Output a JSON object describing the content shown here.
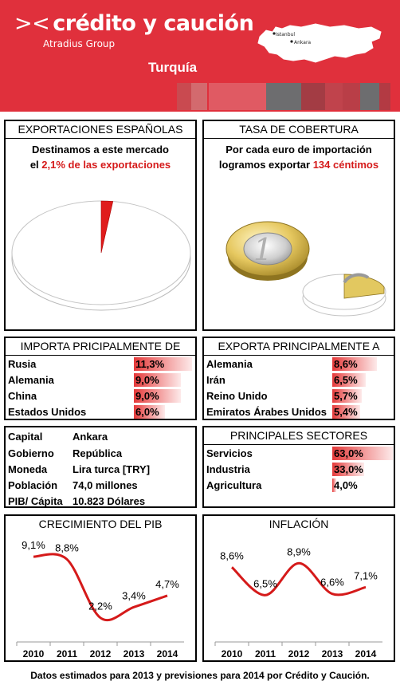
{
  "header": {
    "brand": "crédito y caución",
    "group": "Atradius Group",
    "country": "Turquía",
    "map_labels": [
      "Istanbul",
      "Ankara"
    ],
    "colors": {
      "brand_red": "#e0303c",
      "accent_red": "#d51a1a"
    }
  },
  "exportaciones": {
    "title": "EXPORTACIONES ESPAÑOLAS",
    "line1": "Destinamos a este mercado",
    "line2_prefix": "el ",
    "line2_value": "2,1% de las exportaciones",
    "share_percent": 2.1
  },
  "cobertura": {
    "title": "TASA DE COBERTURA",
    "line1": "Por cada euro de importación",
    "line2_prefix": "logramos exportar ",
    "line2_value": "134 céntimos",
    "coverage_cents": 134
  },
  "importa": {
    "title": "IMPORTA PRICIPALMENTE DE",
    "rows": [
      {
        "label": "Rusia",
        "value": "11,3%",
        "pct": 11.3
      },
      {
        "label": "Alemania",
        "value": "9,0%",
        "pct": 9.0
      },
      {
        "label": "China",
        "value": "9,0%",
        "pct": 9.0
      },
      {
        "label": "Estados Unidos",
        "value": "6,0%",
        "pct": 6.0
      }
    ]
  },
  "exporta": {
    "title": "EXPORTA PRINCIPALMENTE A",
    "rows": [
      {
        "label": "Alemania",
        "value": "8,6%",
        "pct": 8.6
      },
      {
        "label": "Irán",
        "value": "6,5%",
        "pct": 6.5
      },
      {
        "label": "Reino Unido",
        "value": "5,7%",
        "pct": 5.7
      },
      {
        "label": "Emiratos Árabes Unidos",
        "value": "5,4%",
        "pct": 5.4
      }
    ]
  },
  "datos": {
    "rows": [
      {
        "label": "Capital",
        "value": "Ankara"
      },
      {
        "label": "Gobierno",
        "value": "República"
      },
      {
        "label": "Moneda",
        "value": "Lira turca [TRY]"
      },
      {
        "label": "Población",
        "value": "74,0 millones"
      },
      {
        "label": "PIB/ Cápita",
        "value": "10.823 Dólares"
      }
    ]
  },
  "sectores": {
    "title": "PRINCIPALES SECTORES",
    "rows": [
      {
        "label": "Servicios",
        "value": "63,0%",
        "pct": 63.0
      },
      {
        "label": "Industria",
        "value": "33,0%",
        "pct": 33.0
      },
      {
        "label": "Agricultura",
        "value": "4,0%",
        "pct": 4.0
      }
    ]
  },
  "chart_data": [
    {
      "type": "line",
      "title": "CRECIMIENTO DEL PIB",
      "x": [
        "2010",
        "2011",
        "2012",
        "2013",
        "2014"
      ],
      "y": [
        9.1,
        8.8,
        2.2,
        3.4,
        4.7
      ],
      "labels": [
        "9,1%",
        "8,8%",
        "2,2%",
        "3,4%",
        "4,7%"
      ],
      "ylim": [
        1,
        10
      ],
      "grid": false,
      "color": "#d51a1a"
    },
    {
      "type": "line",
      "title": "INFLACIÓN",
      "x": [
        "2010",
        "2011",
        "2012",
        "2013",
        "2014"
      ],
      "y": [
        8.6,
        6.5,
        8.9,
        6.6,
        7.1
      ],
      "labels": [
        "8,6%",
        "6,5%",
        "8,9%",
        "6,6%",
        "7,1%"
      ],
      "ylim": [
        4,
        10
      ],
      "grid": false,
      "color": "#d51a1a"
    }
  ],
  "footer": "Datos estimados para 2013 y previsiones para 2014 por Crédito y Caución."
}
